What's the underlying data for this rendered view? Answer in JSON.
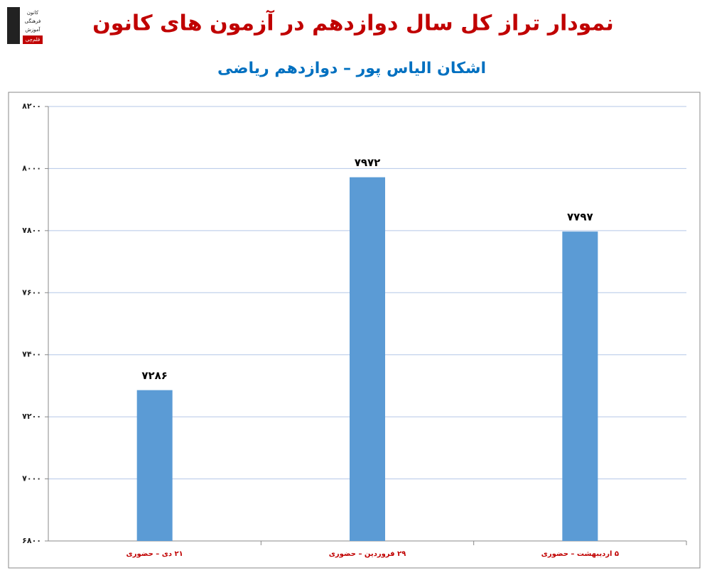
{
  "chart_data": {
    "type": "bar",
    "title": "نمودار تراز کل سال دوازدهم در آزمون های کانون",
    "subtitle": "اشکان الیاس پور – دوازدهم ریاضی",
    "categories": [
      "۲۱ دی – حضوری",
      "۲۹ فروردین – حضوری",
      "۵ اردیبهشت – حضوری"
    ],
    "values": [
      7286,
      7972,
      7797
    ],
    "value_labels": [
      "۷۲۸۶",
      "۷۹۷۲",
      "۷۷۹۷"
    ],
    "color": "#5b9bd5",
    "ylim": [
      6800,
      8200
    ],
    "yticks": [
      {
        "value": 6800,
        "label": "۶۸۰۰"
      },
      {
        "value": 7000,
        "label": "۷۰۰۰"
      },
      {
        "value": 7200,
        "label": "۷۲۰۰"
      },
      {
        "value": 7400,
        "label": "۷۴۰۰"
      },
      {
        "value": 7600,
        "label": "۷۶۰۰"
      },
      {
        "value": 7800,
        "label": "۷۸۰۰"
      },
      {
        "value": 8000,
        "label": "۸۰۰۰"
      },
      {
        "value": 8200,
        "label": "۸۲۰۰"
      }
    ],
    "grid": true
  },
  "logo": [
    "کانون",
    "فرهنگی",
    "آموزش",
    "قلم‌چی"
  ]
}
